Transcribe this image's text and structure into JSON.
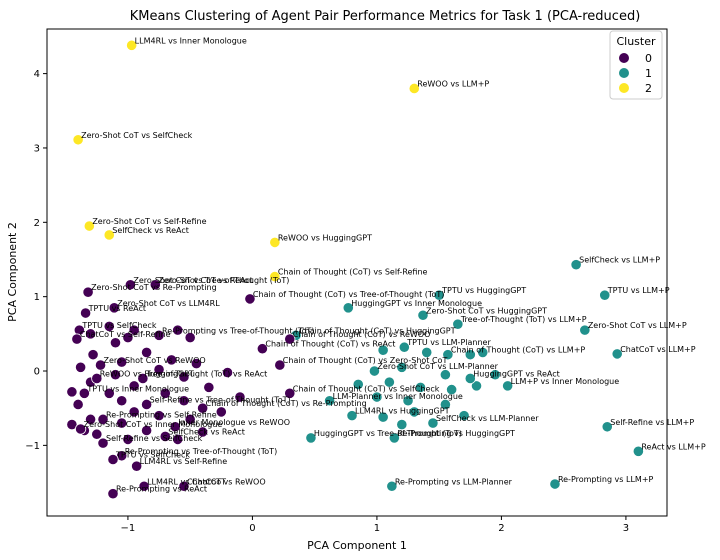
{
  "chart_data": {
    "type": "scatter",
    "title": "KMeans Clustering of Agent Pair Performance Metrics for Task 1 (PCA-reduced)",
    "xlabel": "PCA Component 1",
    "ylabel": "PCA Component 2",
    "xlim": [
      -1.65,
      3.33
    ],
    "ylim": [
      -1.95,
      4.6
    ],
    "xticks": [
      -1,
      0,
      1,
      2,
      3
    ],
    "yticks": [
      -1,
      0,
      1,
      2,
      3,
      4
    ],
    "grid": false,
    "legend": {
      "title": "Cluster",
      "placement": "top-right",
      "entries": [
        "0",
        "1",
        "2"
      ]
    },
    "colors": {
      "0": "#440154",
      "1": "#21918c",
      "2": "#fde725"
    },
    "points": [
      {
        "x": -0.97,
        "y": 4.38,
        "cluster": 2,
        "label": "LLM4RL vs Inner Monologue"
      },
      {
        "x": 1.3,
        "y": 3.8,
        "cluster": 2,
        "label": "ReWOO vs LLM+P"
      },
      {
        "x": -1.4,
        "y": 3.11,
        "cluster": 2,
        "label": "Zero-Shot CoT vs SelfCheck"
      },
      {
        "x": -1.31,
        "y": 1.95,
        "cluster": 2,
        "label": "Zero-Shot CoT vs Self-Refine"
      },
      {
        "x": -1.15,
        "y": 1.83,
        "cluster": 2,
        "label": "SelfCheck vs ReAct"
      },
      {
        "x": 0.18,
        "y": 1.73,
        "cluster": 2,
        "label": "ReWOO vs HuggingGPT"
      },
      {
        "x": 0.18,
        "y": 1.27,
        "cluster": 2,
        "label": "Chain of Thought (CoT) vs Self-Refine"
      },
      {
        "x": 2.6,
        "y": 1.43,
        "cluster": 1,
        "label": "SelfCheck vs LLM+P"
      },
      {
        "x": 2.83,
        "y": 1.02,
        "cluster": 1,
        "label": "TPTU vs LLM+P"
      },
      {
        "x": 1.5,
        "y": 1.02,
        "cluster": 1,
        "label": "TPTU vs HuggingGPT"
      },
      {
        "x": 1.37,
        "y": 0.75,
        "cluster": 1,
        "label": "Zero-Shot CoT vs HuggingGPT"
      },
      {
        "x": 1.65,
        "y": 0.63,
        "cluster": 1,
        "label": "Tree-of-Thought (ToT) vs LLM+P"
      },
      {
        "x": 2.67,
        "y": 0.55,
        "cluster": 1,
        "label": "Zero-Shot CoT vs LLM+P"
      },
      {
        "x": 0.77,
        "y": 0.85,
        "cluster": 1,
        "label": "HuggingGPT vs Inner Monologue"
      },
      {
        "x": 0.35,
        "y": 0.48,
        "cluster": 1,
        "label": "Chain of Thought (CoT) vs HuggingGPT"
      },
      {
        "x": 1.22,
        "y": 0.32,
        "cluster": 1,
        "label": "TPTU vs LLM-Planner"
      },
      {
        "x": 1.57,
        "y": 0.22,
        "cluster": 1,
        "label": "Chain of Thought (CoT) vs LLM+P"
      },
      {
        "x": 2.93,
        "y": 0.23,
        "cluster": 1,
        "label": "ChatCoT vs LLM+P"
      },
      {
        "x": 0.98,
        "y": 0.0,
        "cluster": 1,
        "label": "Zero-Shot CoT vs LLM-Planner"
      },
      {
        "x": 1.75,
        "y": -0.1,
        "cluster": 1,
        "label": "HuggingGPT vs ReAct"
      },
      {
        "x": 2.05,
        "y": -0.2,
        "cluster": 1,
        "label": "LLM+P vs Inner Monologue"
      },
      {
        "x": 0.62,
        "y": -0.4,
        "cluster": 1,
        "label": "LLM-Planner vs Inner Monologue"
      },
      {
        "x": 0.8,
        "y": -0.6,
        "cluster": 1,
        "label": "LLM4RL vs HuggingGPT"
      },
      {
        "x": 1.45,
        "y": -0.7,
        "cluster": 1,
        "label": "SelfCheck vs LLM-Planner"
      },
      {
        "x": 2.85,
        "y": -0.75,
        "cluster": 1,
        "label": "Self-Refine vs LLM+P"
      },
      {
        "x": 0.47,
        "y": -0.9,
        "cluster": 1,
        "label": "HuggingGPT vs Tree-of-Thought (ToT)"
      },
      {
        "x": 1.14,
        "y": -0.9,
        "cluster": 1,
        "label": "Re-Prompting vs HuggingGPT"
      },
      {
        "x": 3.1,
        "y": -1.08,
        "cluster": 1,
        "label": "ReAct vs LLM+P"
      },
      {
        "x": 1.12,
        "y": -1.55,
        "cluster": 1,
        "label": "Re-Prompting vs LLM-Planner"
      },
      {
        "x": 2.43,
        "y": -1.52,
        "cluster": 1,
        "label": "Re-Prompting vs LLM+P"
      },
      {
        "x": -0.98,
        "y": 1.16,
        "cluster": 0,
        "label": "Zero-Shot CoT vs Tree-of-Thought (ToT)"
      },
      {
        "x": -0.78,
        "y": 1.16,
        "cluster": 0,
        "label": "Zero-Shot CoT vs ReAct"
      },
      {
        "x": -0.02,
        "y": 0.97,
        "cluster": 0,
        "label": "Chain of Thought (CoT) vs Tree-of-Thought (ToT)"
      },
      {
        "x": -1.32,
        "y": 1.06,
        "cluster": 0,
        "label": "Zero-Shot CoT vs Re-Prompting"
      },
      {
        "x": -1.11,
        "y": 0.85,
        "cluster": 0,
        "label": "Zero-Shot CoT vs LLM4RL"
      },
      {
        "x": -1.34,
        "y": 0.78,
        "cluster": 0,
        "label": "TPTU vs ReAct"
      },
      {
        "x": -1.39,
        "y": 0.55,
        "cluster": 0,
        "label": "TPTU vs SelfCheck"
      },
      {
        "x": -1.41,
        "y": 0.43,
        "cluster": 0,
        "label": "ChatCoT vs Self-Refine"
      },
      {
        "x": -0.75,
        "y": 0.48,
        "cluster": 0,
        "label": "Re-Prompting vs Tree-of-Thought (ToT)"
      },
      {
        "x": 0.3,
        "y": 0.43,
        "cluster": 0,
        "label": "Chain of Thought (CoT) vs ReWOO"
      },
      {
        "x": 0.08,
        "y": 0.3,
        "cluster": 0,
        "label": "Chain of Thought (CoT) vs ReAct"
      },
      {
        "x": -1.22,
        "y": 0.08,
        "cluster": 0,
        "label": "Zero-Shot CoT vs ReWOO"
      },
      {
        "x": 0.22,
        "y": 0.08,
        "cluster": 0,
        "label": "Chain of Thought (CoT) vs Zero-Shot CoT"
      },
      {
        "x": -1.25,
        "y": -0.1,
        "cluster": 0,
        "label": "ReWOO vs HuggingGPT"
      },
      {
        "x": -0.88,
        "y": -0.1,
        "cluster": 0,
        "label": "Tree-of-Thought (ToT) vs ReAct"
      },
      {
        "x": 0.3,
        "y": -0.3,
        "cluster": 0,
        "label": "Chain of Thought (CoT) vs SelfCheck"
      },
      {
        "x": -1.35,
        "y": -0.3,
        "cluster": 0,
        "label": "TPTU vs Inner Monologue"
      },
      {
        "x": -0.85,
        "y": -0.45,
        "cluster": 0,
        "label": "Self-Refine vs Tree-of-Thought (ToT)"
      },
      {
        "x": -1.2,
        "y": -0.65,
        "cluster": 0,
        "label": "Re-Prompting vs Self-Refine"
      },
      {
        "x": -0.4,
        "y": -0.5,
        "cluster": 0,
        "label": "Chain of Thought (CoT) vs Re-Prompting"
      },
      {
        "x": -0.62,
        "y": -0.75,
        "cluster": 0,
        "label": "Inner Monologue vs ReWOO"
      },
      {
        "x": -1.2,
        "y": -0.97,
        "cluster": 0,
        "label": "Self-Refine vs SelfCheck"
      },
      {
        "x": -1.05,
        "y": -1.14,
        "cluster": 0,
        "label": "Re-Prompting vs Tree-of-Thought (ToT)"
      },
      {
        "x": -1.12,
        "y": -1.19,
        "cluster": 0,
        "label": "TPTU vs SelfCheck"
      },
      {
        "x": -0.93,
        "y": -1.28,
        "cluster": 0,
        "label": "LLM4RL vs Self-Refine"
      },
      {
        "x": -0.87,
        "y": -1.55,
        "cluster": 0,
        "label": "LLM4RL vs ChatCoT"
      },
      {
        "x": -0.55,
        "y": -1.55,
        "cluster": 0,
        "label": "ChatCoT vs ReWOO"
      },
      {
        "x": -1.12,
        "y": -1.65,
        "cluster": 0,
        "label": "Re-Prompting vs ReAct"
      },
      {
        "x": -0.7,
        "y": -0.88,
        "cluster": 0,
        "label": "SelfCheck vs ReAct"
      },
      {
        "x": -1.38,
        "y": -0.78,
        "cluster": 0,
        "label": "Zero-Shot CoT vs Inner Monologue"
      }
    ],
    "clutter_points": [
      {
        "x": -1.15,
        "y": 0.6,
        "cluster": 0
      },
      {
        "x": -0.95,
        "y": 0.55,
        "cluster": 0
      },
      {
        "x": -0.6,
        "y": 0.55,
        "cluster": 0
      },
      {
        "x": -1.3,
        "y": 0.5,
        "cluster": 0
      },
      {
        "x": -1.0,
        "y": 0.45,
        "cluster": 0
      },
      {
        "x": -0.5,
        "y": 0.45,
        "cluster": 0
      },
      {
        "x": -1.1,
        "y": 0.38,
        "cluster": 0
      },
      {
        "x": -0.85,
        "y": 0.25,
        "cluster": 0
      },
      {
        "x": -1.28,
        "y": 0.22,
        "cluster": 0
      },
      {
        "x": -0.65,
        "y": 0.15,
        "cluster": 0
      },
      {
        "x": -1.05,
        "y": 0.12,
        "cluster": 0
      },
      {
        "x": -0.45,
        "y": 0.1,
        "cluster": 0
      },
      {
        "x": -1.38,
        "y": 0.05,
        "cluster": 0
      },
      {
        "x": -0.75,
        "y": 0.02,
        "cluster": 0
      },
      {
        "x": -0.2,
        "y": -0.02,
        "cluster": 0
      },
      {
        "x": -1.1,
        "y": -0.05,
        "cluster": 0
      },
      {
        "x": -0.55,
        "y": -0.08,
        "cluster": 0
      },
      {
        "x": -1.3,
        "y": -0.15,
        "cluster": 0
      },
      {
        "x": -0.95,
        "y": -0.2,
        "cluster": 0
      },
      {
        "x": -0.35,
        "y": -0.22,
        "cluster": 0
      },
      {
        "x": -1.45,
        "y": -0.28,
        "cluster": 0
      },
      {
        "x": -1.15,
        "y": -0.3,
        "cluster": 0
      },
      {
        "x": -0.7,
        "y": -0.3,
        "cluster": 0
      },
      {
        "x": -0.1,
        "y": -0.35,
        "cluster": 0
      },
      {
        "x": -1.05,
        "y": -0.4,
        "cluster": 0
      },
      {
        "x": -0.55,
        "y": -0.4,
        "cluster": 0
      },
      {
        "x": -1.4,
        "y": -0.45,
        "cluster": 0
      },
      {
        "x": -0.95,
        "y": -0.55,
        "cluster": 0
      },
      {
        "x": -0.25,
        "y": -0.55,
        "cluster": 0
      },
      {
        "x": -0.75,
        "y": -0.6,
        "cluster": 0
      },
      {
        "x": -1.3,
        "y": -0.65,
        "cluster": 0
      },
      {
        "x": -0.5,
        "y": -0.65,
        "cluster": 0
      },
      {
        "x": -1.05,
        "y": -0.7,
        "cluster": 0
      },
      {
        "x": -1.45,
        "y": -0.72,
        "cluster": 0
      },
      {
        "x": -0.85,
        "y": -0.8,
        "cluster": 0
      },
      {
        "x": -0.4,
        "y": -0.82,
        "cluster": 0
      },
      {
        "x": -1.25,
        "y": -0.85,
        "cluster": 0
      },
      {
        "x": -1.0,
        "y": -0.92,
        "cluster": 0
      },
      {
        "x": -0.6,
        "y": -0.92,
        "cluster": 0
      },
      {
        "x": -1.35,
        "y": -0.8,
        "cluster": 0
      },
      {
        "x": 1.05,
        "y": 0.28,
        "cluster": 1
      },
      {
        "x": 1.4,
        "y": 0.25,
        "cluster": 1
      },
      {
        "x": 1.75,
        "y": 0.22,
        "cluster": 1
      },
      {
        "x": 1.85,
        "y": 0.25,
        "cluster": 1
      },
      {
        "x": 1.2,
        "y": 0.05,
        "cluster": 1
      },
      {
        "x": 1.55,
        "y": -0.05,
        "cluster": 1
      },
      {
        "x": 1.95,
        "y": -0.05,
        "cluster": 1
      },
      {
        "x": 0.85,
        "y": -0.18,
        "cluster": 1
      },
      {
        "x": 1.1,
        "y": -0.15,
        "cluster": 1
      },
      {
        "x": 1.35,
        "y": -0.22,
        "cluster": 1
      },
      {
        "x": 1.8,
        "y": -0.2,
        "cluster": 1
      },
      {
        "x": 1.6,
        "y": -0.25,
        "cluster": 1
      },
      {
        "x": 1.0,
        "y": -0.35,
        "cluster": 1
      },
      {
        "x": 1.25,
        "y": -0.4,
        "cluster": 1
      },
      {
        "x": 1.55,
        "y": -0.45,
        "cluster": 1
      },
      {
        "x": 1.3,
        "y": -0.55,
        "cluster": 1
      },
      {
        "x": 1.05,
        "y": -0.62,
        "cluster": 1
      },
      {
        "x": 1.7,
        "y": -0.6,
        "cluster": 1
      },
      {
        "x": 1.2,
        "y": -0.72,
        "cluster": 1
      }
    ]
  }
}
